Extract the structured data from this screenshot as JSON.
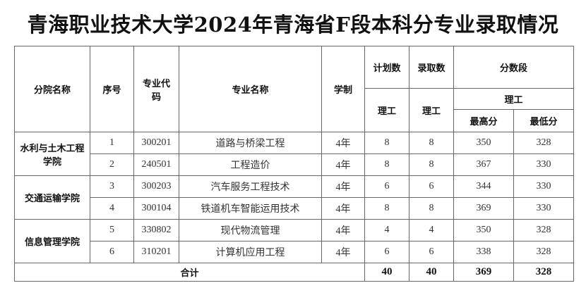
{
  "title": "青海职业技术大学2024年青海省F段本科分专业录取情况",
  "headers": {
    "college": "分院名称",
    "no": "序号",
    "code": "专业代码",
    "major": "专业名称",
    "years": "学制",
    "plan": "计划数",
    "admit": "录取数",
    "score": "分数段",
    "plan_sub": "理工",
    "admit_sub": "理工",
    "score_sub": "理工",
    "max": "最高分",
    "min": "最低分"
  },
  "colleges": [
    "水利与土木工程学院",
    "交通运输学院",
    "信息管理学院"
  ],
  "rows": [
    {
      "no": "1",
      "code": "300201",
      "major": "道路与桥梁工程",
      "years": "4年",
      "plan": "8",
      "admit": "8",
      "max": "350",
      "min": "328"
    },
    {
      "no": "2",
      "code": "240501",
      "major": "工程造价",
      "years": "4年",
      "plan": "8",
      "admit": "8",
      "max": "367",
      "min": "330"
    },
    {
      "no": "3",
      "code": "300203",
      "major": "汽车服务工程技术",
      "years": "4年",
      "plan": "6",
      "admit": "6",
      "max": "344",
      "min": "330"
    },
    {
      "no": "4",
      "code": "300104",
      "major": "铁道机车智能运用技术",
      "years": "4年",
      "plan": "8",
      "admit": "8",
      "max": "369",
      "min": "330"
    },
    {
      "no": "5",
      "code": "330802",
      "major": "现代物流管理",
      "years": "4年",
      "plan": "4",
      "admit": "4",
      "max": "350",
      "min": "328"
    },
    {
      "no": "6",
      "code": "310201",
      "major": "计算机应用工程",
      "years": "4年",
      "plan": "6",
      "admit": "6",
      "max": "338",
      "min": "328"
    }
  ],
  "total": {
    "label": "合计",
    "plan": "40",
    "admit": "40",
    "max": "369",
    "min": "328"
  }
}
